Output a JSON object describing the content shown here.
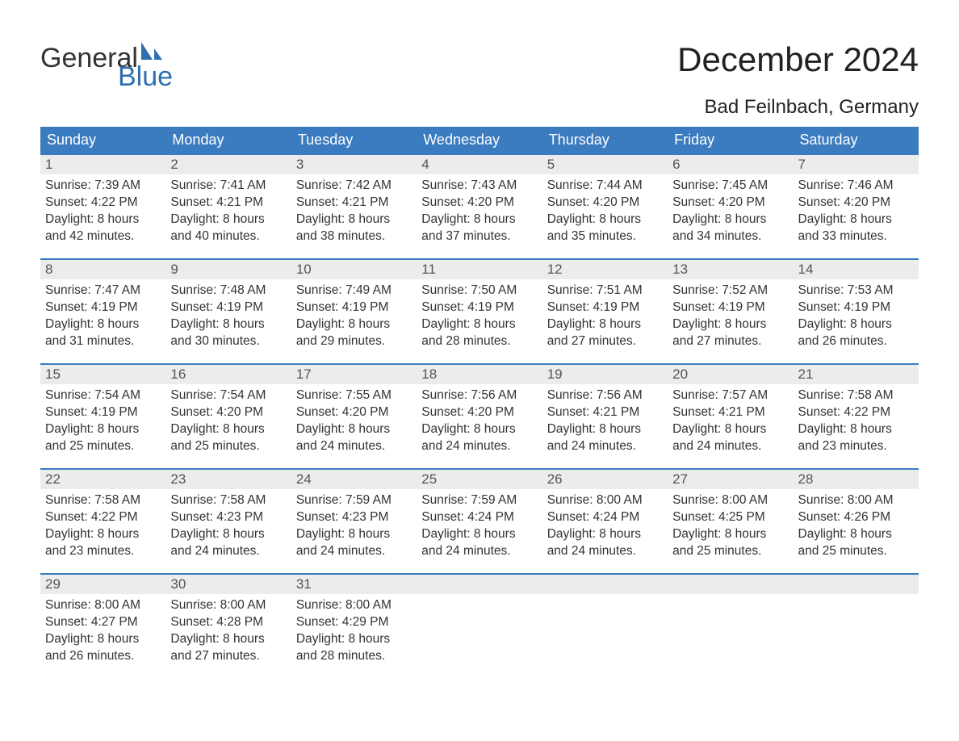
{
  "logo": {
    "text1": "General",
    "text2": "Blue",
    "sail_color": "#2f6fb0"
  },
  "title": "December 2024",
  "location": "Bad Feilnbach, Germany",
  "colors": {
    "header_bg": "#3b7bbf",
    "header_text": "#ffffff",
    "daynum_bg": "#ececec",
    "week_border": "#3b7bbf",
    "body_text": "#333333",
    "page_bg": "#ffffff"
  },
  "weekdays": [
    "Sunday",
    "Monday",
    "Tuesday",
    "Wednesday",
    "Thursday",
    "Friday",
    "Saturday"
  ],
  "weeks": [
    [
      {
        "n": "1",
        "sunrise": "Sunrise: 7:39 AM",
        "sunset": "Sunset: 4:22 PM",
        "day1": "Daylight: 8 hours",
        "day2": "and 42 minutes."
      },
      {
        "n": "2",
        "sunrise": "Sunrise: 7:41 AM",
        "sunset": "Sunset: 4:21 PM",
        "day1": "Daylight: 8 hours",
        "day2": "and 40 minutes."
      },
      {
        "n": "3",
        "sunrise": "Sunrise: 7:42 AM",
        "sunset": "Sunset: 4:21 PM",
        "day1": "Daylight: 8 hours",
        "day2": "and 38 minutes."
      },
      {
        "n": "4",
        "sunrise": "Sunrise: 7:43 AM",
        "sunset": "Sunset: 4:20 PM",
        "day1": "Daylight: 8 hours",
        "day2": "and 37 minutes."
      },
      {
        "n": "5",
        "sunrise": "Sunrise: 7:44 AM",
        "sunset": "Sunset: 4:20 PM",
        "day1": "Daylight: 8 hours",
        "day2": "and 35 minutes."
      },
      {
        "n": "6",
        "sunrise": "Sunrise: 7:45 AM",
        "sunset": "Sunset: 4:20 PM",
        "day1": "Daylight: 8 hours",
        "day2": "and 34 minutes."
      },
      {
        "n": "7",
        "sunrise": "Sunrise: 7:46 AM",
        "sunset": "Sunset: 4:20 PM",
        "day1": "Daylight: 8 hours",
        "day2": "and 33 minutes."
      }
    ],
    [
      {
        "n": "8",
        "sunrise": "Sunrise: 7:47 AM",
        "sunset": "Sunset: 4:19 PM",
        "day1": "Daylight: 8 hours",
        "day2": "and 31 minutes."
      },
      {
        "n": "9",
        "sunrise": "Sunrise: 7:48 AM",
        "sunset": "Sunset: 4:19 PM",
        "day1": "Daylight: 8 hours",
        "day2": "and 30 minutes."
      },
      {
        "n": "10",
        "sunrise": "Sunrise: 7:49 AM",
        "sunset": "Sunset: 4:19 PM",
        "day1": "Daylight: 8 hours",
        "day2": "and 29 minutes."
      },
      {
        "n": "11",
        "sunrise": "Sunrise: 7:50 AM",
        "sunset": "Sunset: 4:19 PM",
        "day1": "Daylight: 8 hours",
        "day2": "and 28 minutes."
      },
      {
        "n": "12",
        "sunrise": "Sunrise: 7:51 AM",
        "sunset": "Sunset: 4:19 PM",
        "day1": "Daylight: 8 hours",
        "day2": "and 27 minutes."
      },
      {
        "n": "13",
        "sunrise": "Sunrise: 7:52 AM",
        "sunset": "Sunset: 4:19 PM",
        "day1": "Daylight: 8 hours",
        "day2": "and 27 minutes."
      },
      {
        "n": "14",
        "sunrise": "Sunrise: 7:53 AM",
        "sunset": "Sunset: 4:19 PM",
        "day1": "Daylight: 8 hours",
        "day2": "and 26 minutes."
      }
    ],
    [
      {
        "n": "15",
        "sunrise": "Sunrise: 7:54 AM",
        "sunset": "Sunset: 4:19 PM",
        "day1": "Daylight: 8 hours",
        "day2": "and 25 minutes."
      },
      {
        "n": "16",
        "sunrise": "Sunrise: 7:54 AM",
        "sunset": "Sunset: 4:20 PM",
        "day1": "Daylight: 8 hours",
        "day2": "and 25 minutes."
      },
      {
        "n": "17",
        "sunrise": "Sunrise: 7:55 AM",
        "sunset": "Sunset: 4:20 PM",
        "day1": "Daylight: 8 hours",
        "day2": "and 24 minutes."
      },
      {
        "n": "18",
        "sunrise": "Sunrise: 7:56 AM",
        "sunset": "Sunset: 4:20 PM",
        "day1": "Daylight: 8 hours",
        "day2": "and 24 minutes."
      },
      {
        "n": "19",
        "sunrise": "Sunrise: 7:56 AM",
        "sunset": "Sunset: 4:21 PM",
        "day1": "Daylight: 8 hours",
        "day2": "and 24 minutes."
      },
      {
        "n": "20",
        "sunrise": "Sunrise: 7:57 AM",
        "sunset": "Sunset: 4:21 PM",
        "day1": "Daylight: 8 hours",
        "day2": "and 24 minutes."
      },
      {
        "n": "21",
        "sunrise": "Sunrise: 7:58 AM",
        "sunset": "Sunset: 4:22 PM",
        "day1": "Daylight: 8 hours",
        "day2": "and 23 minutes."
      }
    ],
    [
      {
        "n": "22",
        "sunrise": "Sunrise: 7:58 AM",
        "sunset": "Sunset: 4:22 PM",
        "day1": "Daylight: 8 hours",
        "day2": "and 23 minutes."
      },
      {
        "n": "23",
        "sunrise": "Sunrise: 7:58 AM",
        "sunset": "Sunset: 4:23 PM",
        "day1": "Daylight: 8 hours",
        "day2": "and 24 minutes."
      },
      {
        "n": "24",
        "sunrise": "Sunrise: 7:59 AM",
        "sunset": "Sunset: 4:23 PM",
        "day1": "Daylight: 8 hours",
        "day2": "and 24 minutes."
      },
      {
        "n": "25",
        "sunrise": "Sunrise: 7:59 AM",
        "sunset": "Sunset: 4:24 PM",
        "day1": "Daylight: 8 hours",
        "day2": "and 24 minutes."
      },
      {
        "n": "26",
        "sunrise": "Sunrise: 8:00 AM",
        "sunset": "Sunset: 4:24 PM",
        "day1": "Daylight: 8 hours",
        "day2": "and 24 minutes."
      },
      {
        "n": "27",
        "sunrise": "Sunrise: 8:00 AM",
        "sunset": "Sunset: 4:25 PM",
        "day1": "Daylight: 8 hours",
        "day2": "and 25 minutes."
      },
      {
        "n": "28",
        "sunrise": "Sunrise: 8:00 AM",
        "sunset": "Sunset: 4:26 PM",
        "day1": "Daylight: 8 hours",
        "day2": "and 25 minutes."
      }
    ],
    [
      {
        "n": "29",
        "sunrise": "Sunrise: 8:00 AM",
        "sunset": "Sunset: 4:27 PM",
        "day1": "Daylight: 8 hours",
        "day2": "and 26 minutes."
      },
      {
        "n": "30",
        "sunrise": "Sunrise: 8:00 AM",
        "sunset": "Sunset: 4:28 PM",
        "day1": "Daylight: 8 hours",
        "day2": "and 27 minutes."
      },
      {
        "n": "31",
        "sunrise": "Sunrise: 8:00 AM",
        "sunset": "Sunset: 4:29 PM",
        "day1": "Daylight: 8 hours",
        "day2": "and 28 minutes."
      },
      null,
      null,
      null,
      null
    ]
  ]
}
